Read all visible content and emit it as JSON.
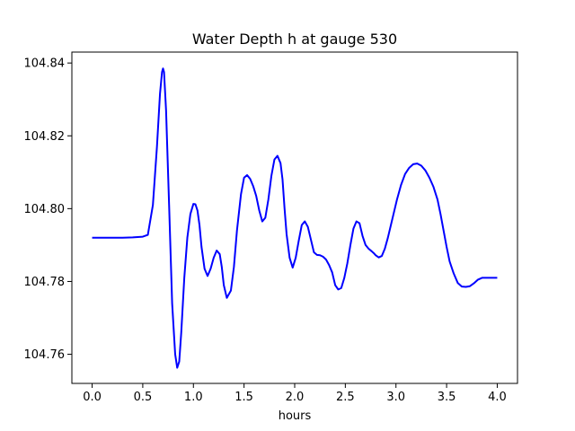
{
  "chart_data": {
    "type": "line",
    "title": "Water Depth h at gauge 530",
    "xlabel": "hours",
    "ylabel": "",
    "xlim": [
      -0.2,
      4.2
    ],
    "ylim": [
      104.752,
      104.843
    ],
    "xticks": [
      0.0,
      0.5,
      1.0,
      1.5,
      2.0,
      2.5,
      3.0,
      3.5,
      4.0
    ],
    "xtick_labels": [
      "0.0",
      "0.5",
      "1.0",
      "1.5",
      "2.0",
      "2.5",
      "3.0",
      "3.5",
      "4.0"
    ],
    "yticks": [
      104.76,
      104.78,
      104.8,
      104.82,
      104.84
    ],
    "ytick_labels": [
      "104.76",
      "104.78",
      "104.80",
      "104.82",
      "104.84"
    ],
    "grid": false,
    "series": [
      {
        "color": "#0000ff",
        "x": [
          0.0,
          0.1,
          0.2,
          0.3,
          0.4,
          0.5,
          0.55,
          0.6,
          0.64,
          0.67,
          0.69,
          0.7,
          0.71,
          0.73,
          0.76,
          0.79,
          0.82,
          0.84,
          0.86,
          0.88,
          0.91,
          0.94,
          0.97,
          1.0,
          1.02,
          1.04,
          1.06,
          1.08,
          1.11,
          1.14,
          1.17,
          1.2,
          1.23,
          1.26,
          1.28,
          1.3,
          1.33,
          1.37,
          1.4,
          1.43,
          1.47,
          1.5,
          1.53,
          1.56,
          1.59,
          1.62,
          1.65,
          1.68,
          1.71,
          1.74,
          1.77,
          1.8,
          1.83,
          1.86,
          1.88,
          1.9,
          1.92,
          1.95,
          1.98,
          2.01,
          2.04,
          2.07,
          2.1,
          2.13,
          2.16,
          2.19,
          2.22,
          2.25,
          2.28,
          2.31,
          2.34,
          2.37,
          2.4,
          2.43,
          2.46,
          2.49,
          2.52,
          2.55,
          2.58,
          2.61,
          2.64,
          2.67,
          2.7,
          2.73,
          2.76,
          2.78,
          2.8,
          2.83,
          2.86,
          2.89,
          2.92,
          2.95,
          2.98,
          3.01,
          3.05,
          3.09,
          3.13,
          3.17,
          3.21,
          3.25,
          3.29,
          3.33,
          3.37,
          3.41,
          3.44,
          3.47,
          3.5,
          3.53,
          3.57,
          3.61,
          3.65,
          3.69,
          3.73,
          3.77,
          3.81,
          3.85,
          3.89,
          3.93,
          3.97,
          4.0
        ],
        "y": [
          104.792,
          104.792,
          104.792,
          104.792,
          104.7921,
          104.7923,
          104.7928,
          104.801,
          104.817,
          104.8315,
          104.8375,
          104.8385,
          104.8375,
          104.827,
          104.801,
          104.774,
          104.76,
          104.7563,
          104.758,
          104.766,
          104.781,
          104.792,
          104.7985,
          104.8013,
          104.8012,
          104.7995,
          104.7955,
          104.7895,
          104.7835,
          104.7815,
          104.7835,
          104.7865,
          104.7885,
          104.7875,
          104.784,
          104.779,
          104.7755,
          104.7775,
          104.784,
          104.794,
          104.804,
          104.8085,
          104.8092,
          104.8082,
          104.8062,
          104.8035,
          104.7995,
          104.7965,
          104.7975,
          104.8025,
          104.809,
          104.8135,
          104.8145,
          104.8125,
          104.808,
          104.8,
          104.793,
          104.7865,
          104.7838,
          104.7865,
          104.7912,
          104.7955,
          104.7965,
          104.795,
          104.7915,
          104.788,
          104.7873,
          104.7872,
          104.7868,
          104.786,
          104.7845,
          104.7825,
          104.779,
          104.7778,
          104.7782,
          104.781,
          104.785,
          104.79,
          104.7945,
          104.7965,
          104.796,
          104.7925,
          104.79,
          104.789,
          104.7883,
          104.7878,
          104.7872,
          104.7866,
          104.787,
          104.789,
          104.792,
          104.7955,
          104.799,
          104.8025,
          104.8065,
          104.8095,
          104.8112,
          104.8122,
          104.8124,
          104.8118,
          104.8105,
          104.8085,
          104.806,
          104.8025,
          104.7985,
          104.794,
          104.7895,
          104.7855,
          104.7822,
          104.7796,
          104.7786,
          104.7785,
          104.7787,
          104.7795,
          104.7805,
          104.781,
          104.781,
          104.781,
          104.781,
          104.781
        ]
      }
    ]
  }
}
